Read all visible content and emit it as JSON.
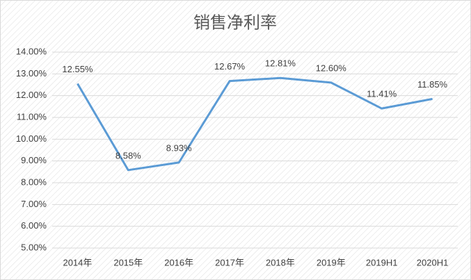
{
  "chart_data": {
    "type": "line",
    "title": "销售净利率",
    "categories": [
      "2014年",
      "2015年",
      "2016年",
      "2017年",
      "2018年",
      "2019年",
      "2019H1",
      "2020H1"
    ],
    "series": [
      {
        "name": "销售净利率",
        "color": "#5b9bd5",
        "values": [
          12.55,
          8.58,
          8.93,
          12.67,
          12.81,
          12.6,
          11.41,
          11.85
        ],
        "value_labels": [
          "12.55%",
          "8.58%",
          "8.93%",
          "12.67%",
          "12.81%",
          "12.60%",
          "11.41%",
          "11.85%"
        ]
      }
    ],
    "ylim": [
      5,
      14
    ],
    "yticks": [
      {
        "value": 5,
        "label": "5.00%"
      },
      {
        "value": 6,
        "label": "6.00%"
      },
      {
        "value": 7,
        "label": "7.00%"
      },
      {
        "value": 8,
        "label": "8.00%"
      },
      {
        "value": 9,
        "label": "9.00%"
      },
      {
        "value": 10,
        "label": "10.00%"
      },
      {
        "value": 11,
        "label": "11.00%"
      },
      {
        "value": 12,
        "label": "12.00%"
      },
      {
        "value": 13,
        "label": "13.00%"
      },
      {
        "value": 14,
        "label": "14.00%"
      }
    ],
    "grid": true
  }
}
